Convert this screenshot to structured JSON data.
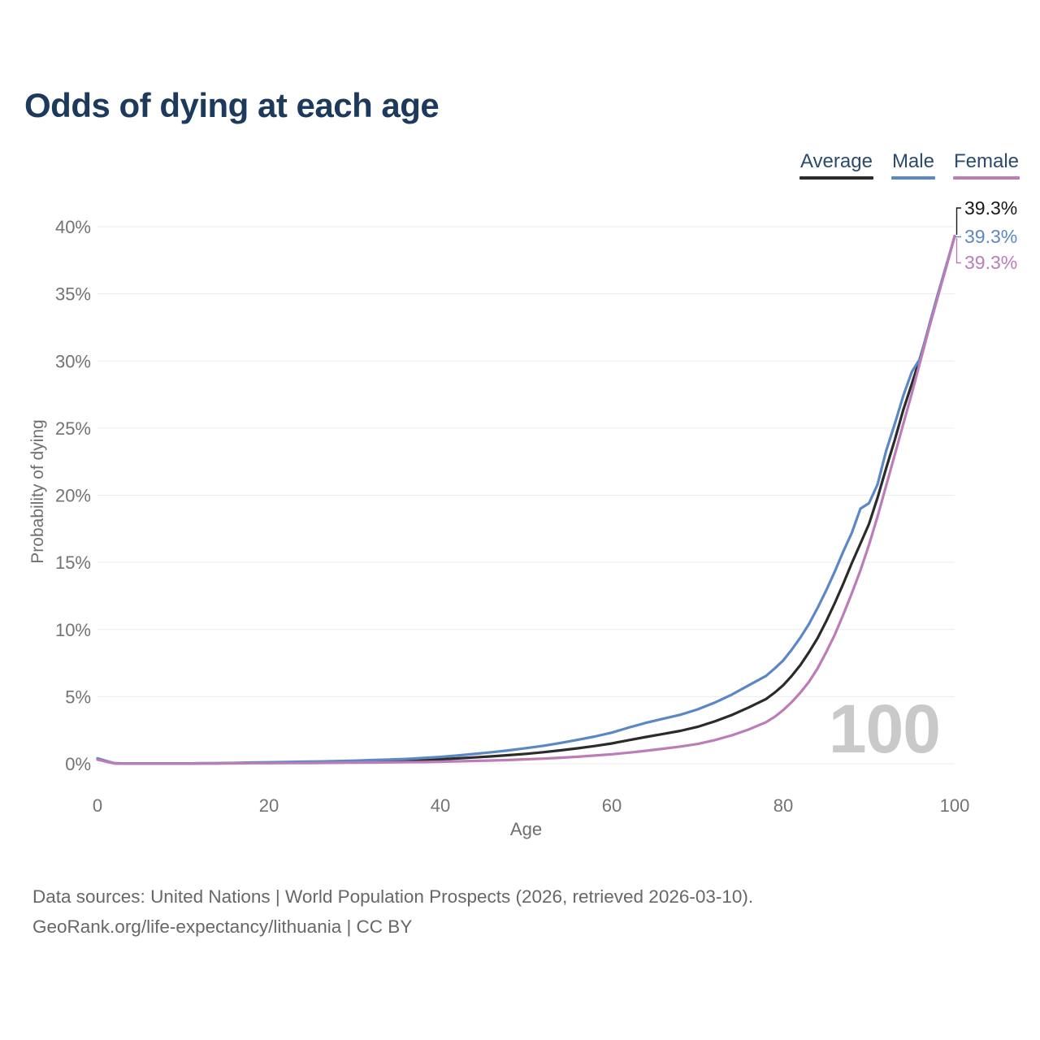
{
  "page": {
    "title": "Odds of dying at each age"
  },
  "legend": [
    {
      "label": "Average",
      "color": "#2b2b2b"
    },
    {
      "label": "Male",
      "color": "#5b88c5"
    },
    {
      "label": "Female",
      "color": "#bc7cb8"
    }
  ],
  "footer": {
    "line1": "Data sources: United Nations | World Population Prospects (2026, retrieved 2026-03-10).",
    "line2": "GeoRank.org/life-expectancy/lithuania | CC BY"
  },
  "chart_data": {
    "type": "line",
    "title": "Odds of dying at each age",
    "xlabel": "Age",
    "ylabel": "Probability of dying",
    "xlim": [
      0,
      100
    ],
    "ylim": [
      0,
      40
    ],
    "x_ticks": [
      0,
      20,
      40,
      60,
      80,
      100
    ],
    "y_ticks": [
      "0%",
      "5%",
      "10%",
      "15%",
      "20%",
      "25%",
      "30%",
      "35%",
      "40%"
    ],
    "grid": true,
    "legend_position": "top-right",
    "watermark": "100",
    "x": [
      0,
      2,
      4,
      6,
      8,
      10,
      12,
      14,
      16,
      18,
      20,
      22,
      24,
      26,
      28,
      30,
      32,
      34,
      36,
      38,
      40,
      42,
      44,
      46,
      48,
      50,
      52,
      54,
      56,
      58,
      60,
      62,
      64,
      66,
      68,
      70,
      72,
      74,
      76,
      78,
      79,
      80,
      81,
      82,
      83,
      84,
      85,
      86,
      87,
      88,
      89,
      90,
      91,
      92,
      93,
      94,
      95,
      96,
      97,
      98,
      99,
      100
    ],
    "series": [
      {
        "name": "Average",
        "color": "#2b2b2b",
        "end_label": "39.3%",
        "values": [
          0.35,
          0.03,
          0.02,
          0.02,
          0.02,
          0.02,
          0.03,
          0.03,
          0.05,
          0.07,
          0.08,
          0.09,
          0.1,
          0.12,
          0.14,
          0.16,
          0.18,
          0.21,
          0.24,
          0.28,
          0.33,
          0.4,
          0.47,
          0.55,
          0.64,
          0.74,
          0.86,
          1.0,
          1.15,
          1.32,
          1.51,
          1.76,
          2.0,
          2.22,
          2.45,
          2.75,
          3.15,
          3.63,
          4.2,
          4.82,
          5.3,
          5.85,
          6.55,
          7.35,
          8.3,
          9.35,
          10.6,
          11.95,
          13.4,
          14.95,
          16.4,
          17.85,
          19.8,
          22.0,
          24.1,
          26.35,
          28.3,
          30.3,
          32.5,
          34.8,
          37.0,
          39.3
        ]
      },
      {
        "name": "Male",
        "color": "#5b88c5",
        "end_label": "39.3%",
        "values": [
          0.4,
          0.03,
          0.02,
          0.02,
          0.02,
          0.02,
          0.03,
          0.04,
          0.06,
          0.09,
          0.11,
          0.13,
          0.15,
          0.17,
          0.2,
          0.23,
          0.27,
          0.31,
          0.36,
          0.43,
          0.51,
          0.61,
          0.73,
          0.86,
          1.0,
          1.16,
          1.34,
          1.55,
          1.78,
          2.03,
          2.32,
          2.7,
          3.05,
          3.35,
          3.65,
          4.05,
          4.55,
          5.15,
          5.85,
          6.55,
          7.1,
          7.7,
          8.5,
          9.4,
          10.4,
          11.6,
          12.9,
          14.3,
          15.8,
          17.2,
          19.0,
          19.4,
          20.8,
          23.3,
          25.3,
          27.4,
          29.2,
          30.2,
          32.6,
          34.9,
          37.1,
          39.3
        ]
      },
      {
        "name": "Female",
        "color": "#bc7cb8",
        "end_label": "39.3%",
        "values": [
          0.3,
          0.02,
          0.01,
          0.01,
          0.01,
          0.01,
          0.02,
          0.02,
          0.03,
          0.04,
          0.04,
          0.05,
          0.05,
          0.06,
          0.07,
          0.08,
          0.09,
          0.1,
          0.12,
          0.13,
          0.15,
          0.18,
          0.21,
          0.24,
          0.28,
          0.33,
          0.38,
          0.45,
          0.52,
          0.61,
          0.71,
          0.83,
          0.97,
          1.12,
          1.28,
          1.47,
          1.76,
          2.12,
          2.56,
          3.1,
          3.5,
          4.0,
          4.6,
          5.3,
          6.1,
          7.1,
          8.3,
          9.6,
          11.1,
          12.7,
          14.4,
          16.3,
          18.4,
          20.7,
          23.0,
          25.3,
          27.6,
          30.0,
          32.4,
          34.7,
          37.0,
          39.3
        ]
      }
    ],
    "colors": {
      "grid": "#ececec",
      "tick_text": "#737373",
      "axis_label": "#6f6f6f",
      "watermark": "#c9c9c9",
      "title": "#1d3a5c",
      "footer_text": "#676767"
    }
  }
}
